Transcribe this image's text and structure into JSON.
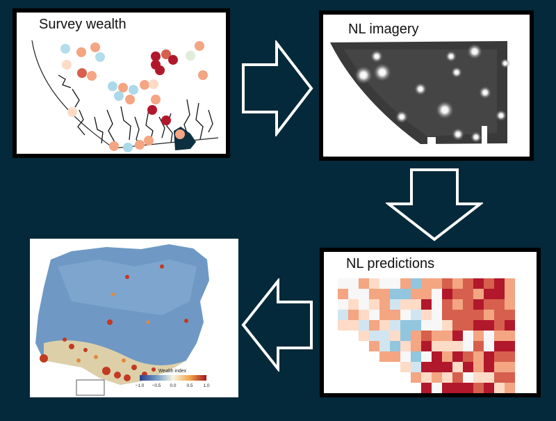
{
  "panels": {
    "survey": {
      "title": "Survey wealth"
    },
    "nl_imagery": {
      "title": "NL imagery"
    },
    "nl_predictions": {
      "title": "NL predictions"
    },
    "wealth_map": {
      "legend_title": "Wealth index",
      "legend_ticks": [
        "−1.0",
        "−0.5",
        "0.0",
        "0.5",
        "1.0"
      ]
    }
  },
  "colors": {
    "background": "#03293a",
    "arrow": "#ffffff",
    "high": "#b2182b",
    "mid": "#fddbc7",
    "low": "#2166ac"
  },
  "icons": {
    "arrow_right": "arrow-right-icon",
    "arrow_down": "arrow-down-icon",
    "arrow_left": "arrow-left-icon"
  }
}
